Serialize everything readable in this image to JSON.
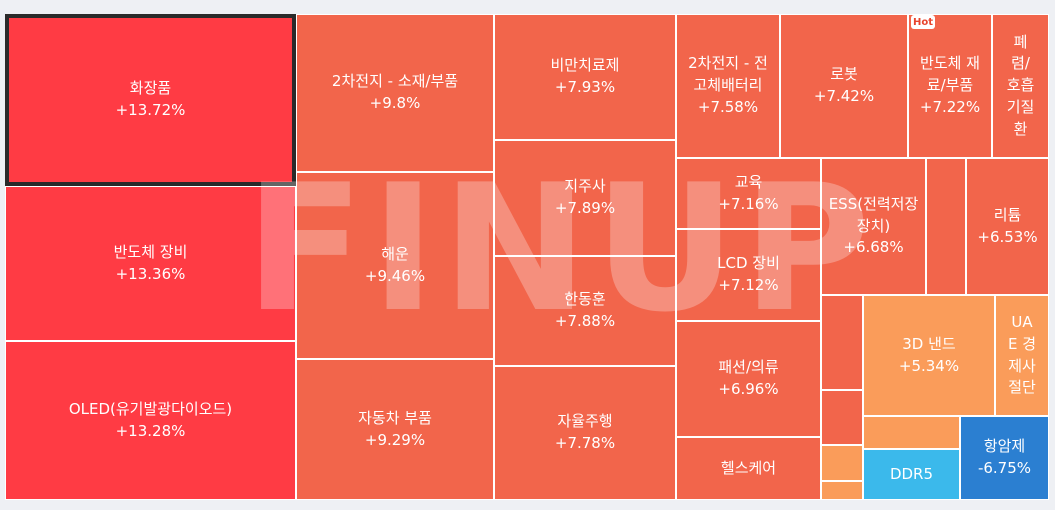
{
  "watermark": "FINUP",
  "colors": {
    "strong_up": "#ff3b44",
    "up": "#f2654b",
    "mild_up": "#fa9c5a",
    "small_down": "#3bb9eb",
    "down": "#2b7fd1",
    "border": "#ffffff",
    "selected_border": "#2a2a2a"
  },
  "sectors": [
    {
      "name": "화장품",
      "change": "+13.72%",
      "color": "#ff3b44",
      "selected": true
    },
    {
      "name": "반도체 장비",
      "change": "+13.36%",
      "color": "#ff3b44"
    },
    {
      "name": "OLED(유기발광다이오드)",
      "change": "+13.28%",
      "color": "#ff3b44"
    },
    {
      "name": "2차전지 - 소재/부품",
      "change": "+9.8%",
      "color": "#f2654b"
    },
    {
      "name": "해운",
      "change": "+9.46%",
      "color": "#f2654b"
    },
    {
      "name": "자동차 부품",
      "change": "+9.29%",
      "color": "#f2654b"
    },
    {
      "name": "비만치료제",
      "change": "+7.93%",
      "color": "#f2654b"
    },
    {
      "name": "지주사",
      "change": "+7.89%",
      "color": "#f2654b"
    },
    {
      "name": "한동훈",
      "change": "+7.88%",
      "color": "#f2654b"
    },
    {
      "name": "자율주행",
      "change": "+7.78%",
      "color": "#f2654b"
    },
    {
      "name": "2차전지 - 전고체배터리",
      "change": "+7.58%",
      "color": "#f2654b"
    },
    {
      "name": "로봇",
      "change": "+7.42%",
      "color": "#f2654b"
    },
    {
      "name": "반도체 재료/부품",
      "change": "+7.22%",
      "color": "#f2654b",
      "hot": "Hot"
    },
    {
      "name": "폐렴/호흡기질환",
      "change": "",
      "color": "#f2654b"
    },
    {
      "name": "교육",
      "change": "+7.16%",
      "color": "#f2654b"
    },
    {
      "name": "LCD 장비",
      "change": "+7.12%",
      "color": "#f2654b"
    },
    {
      "name": "패션/의류",
      "change": "+6.96%",
      "color": "#f2654b"
    },
    {
      "name": "헬스케어",
      "change": "",
      "color": "#f2654b"
    },
    {
      "name": "ESS(전력저장장치)",
      "change": "+6.68%",
      "color": "#f2654b"
    },
    {
      "name": "리튬",
      "change": "+6.53%",
      "color": "#f2654b"
    },
    {
      "name": "3D 낸드",
      "change": "+5.34%",
      "color": "#fa9c5a"
    },
    {
      "name": "UAE 경제사절단",
      "change": "",
      "color": "#fa9c5a"
    },
    {
      "name": "DDR5",
      "change": "",
      "color": "#3bb9eb"
    },
    {
      "name": "항암제",
      "change": "-6.75%",
      "color": "#2b7fd1"
    },
    {
      "name": "",
      "change": "",
      "color": "#f2654b"
    },
    {
      "name": "",
      "change": "",
      "color": "#f2654b"
    },
    {
      "name": "",
      "change": "",
      "color": "#f2654b"
    },
    {
      "name": "",
      "change": "",
      "color": "#f2654b"
    },
    {
      "name": "",
      "change": "",
      "color": "#fa9c5a"
    },
    {
      "name": "",
      "change": "",
      "color": "#fa9c5a"
    },
    {
      "name": "",
      "change": "",
      "color": "#fa9c5a"
    }
  ]
}
